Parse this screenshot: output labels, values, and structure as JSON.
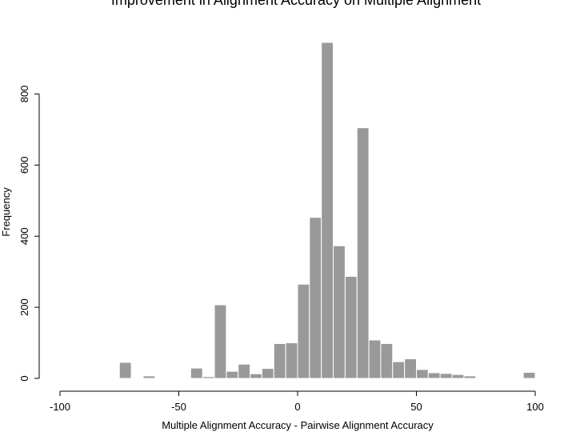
{
  "chart_data": {
    "type": "histogram",
    "title": "Improvement in Alignment Accuracy on Multiple Alignment",
    "x_label": "Multiple Alignment Accuracy - Pairwise Alignment Accuracy",
    "y_label": "Frequency",
    "bins": [
      -75,
      -70,
      -65,
      -60,
      -55,
      -50,
      -45,
      -40,
      -35,
      -30,
      -25,
      -20,
      -15,
      -10,
      -5,
      0,
      5,
      10,
      15,
      20,
      25,
      30,
      35,
      40,
      45,
      50,
      55,
      60,
      65,
      70,
      75,
      80,
      85,
      90,
      95,
      100
    ],
    "values": [
      45,
      0,
      7,
      0,
      2,
      0,
      29,
      5,
      207,
      20,
      40,
      13,
      28,
      98,
      100,
      265,
      453,
      945,
      373,
      287,
      705,
      108,
      98,
      47,
      55,
      25,
      16,
      14,
      11,
      7,
      0,
      0,
      0,
      0,
      17
    ],
    "color": "#999999",
    "xlim": [
      -100,
      100
    ],
    "xticks": [
      -100,
      -50,
      0,
      50,
      100
    ],
    "ylim": [
      0,
      945
    ],
    "yticks": [
      0,
      200,
      400,
      600,
      800
    ]
  }
}
